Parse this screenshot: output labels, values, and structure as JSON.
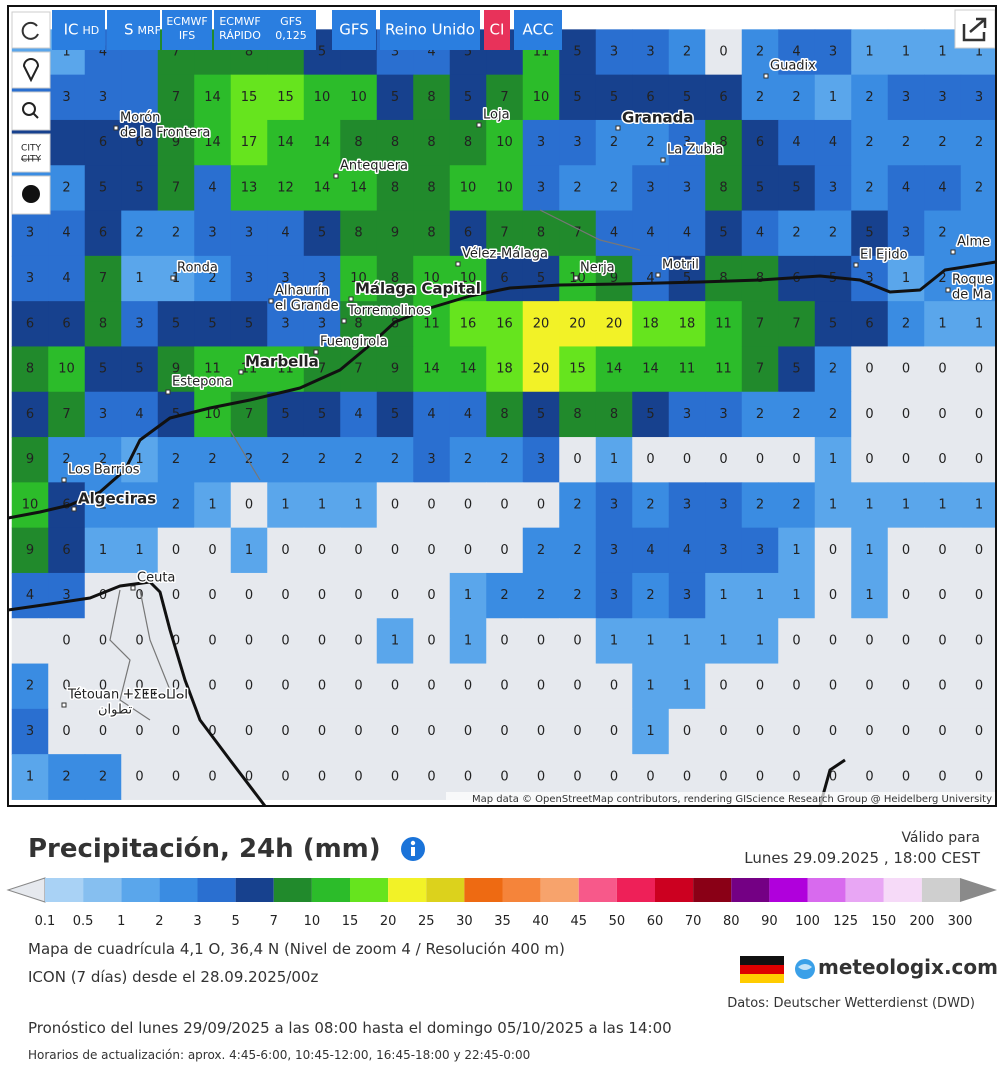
{
  "toolbar": {
    "buttons": [
      {
        "label": "IC",
        "sub": "HD"
      },
      {
        "label": "S",
        "sub": "MRF"
      },
      {
        "label": "ECMWF",
        "sub": "IFS"
      },
      {
        "label": "ECMWF",
        "sub": "RÁPIDO"
      },
      {
        "label": "GFS",
        "sub": "0,125"
      },
      {
        "label": "GFS"
      },
      {
        "label": "Reino Unido"
      },
      {
        "label": "CI"
      },
      {
        "label": "ACC"
      }
    ],
    "city_icon": "CITY"
  },
  "map": {
    "grid": [
      [
        null,
        1,
        4,
        null,
        7,
        null,
        8,
        null,
        5,
        null,
        3,
        4,
        5,
        null,
        11,
        5,
        3,
        3,
        2,
        0,
        2,
        4,
        3,
        1,
        1,
        1,
        1
      ],
      [
        null,
        3,
        3,
        null,
        7,
        14,
        15,
        15,
        10,
        10,
        5,
        8,
        5,
        7,
        10,
        5,
        5,
        6,
        5,
        6,
        2,
        2,
        1,
        2,
        3,
        3,
        3
      ],
      [
        null,
        null,
        6,
        6,
        9,
        14,
        17,
        14,
        14,
        8,
        8,
        8,
        8,
        10,
        3,
        3,
        2,
        2,
        3,
        8,
        6,
        4,
        4,
        2,
        2,
        2,
        2
      ],
      [
        null,
        2,
        5,
        5,
        7,
        4,
        13,
        12,
        14,
        14,
        8,
        8,
        10,
        10,
        3,
        2,
        2,
        3,
        3,
        8,
        5,
        5,
        3,
        2,
        4,
        4,
        2
      ],
      [
        3,
        4,
        6,
        2,
        2,
        3,
        3,
        4,
        5,
        8,
        9,
        8,
        6,
        7,
        8,
        7,
        4,
        4,
        4,
        5,
        4,
        2,
        2,
        5,
        3,
        2,
        null
      ],
      [
        3,
        4,
        7,
        1,
        1,
        2,
        3,
        3,
        3,
        10,
        8,
        10,
        10,
        6,
        5,
        10,
        9,
        4,
        5,
        8,
        8,
        6,
        5,
        3,
        1,
        2,
        null
      ],
      [
        6,
        6,
        8,
        3,
        5,
        5,
        5,
        3,
        3,
        8,
        8,
        11,
        16,
        16,
        20,
        20,
        20,
        18,
        18,
        11,
        7,
        7,
        5,
        6,
        2,
        1,
        1
      ],
      [
        8,
        10,
        5,
        5,
        9,
        11,
        11,
        11,
        7,
        7,
        9,
        14,
        14,
        18,
        20,
        15,
        14,
        14,
        11,
        11,
        7,
        5,
        2,
        0,
        0,
        0,
        0
      ],
      [
        6,
        7,
        3,
        4,
        5,
        10,
        7,
        5,
        5,
        4,
        5,
        4,
        4,
        8,
        5,
        8,
        8,
        5,
        3,
        3,
        2,
        2,
        2,
        0,
        0,
        0,
        0
      ],
      [
        9,
        2,
        2,
        1,
        2,
        2,
        2,
        2,
        2,
        2,
        2,
        3,
        2,
        2,
        3,
        0,
        1,
        0,
        0,
        0,
        0,
        0,
        1,
        0,
        0,
        0,
        0
      ],
      [
        10,
        6,
        2,
        null,
        2,
        1,
        0,
        1,
        1,
        1,
        0,
        0,
        0,
        0,
        0,
        2,
        3,
        2,
        3,
        3,
        2,
        2,
        1,
        1,
        1,
        1,
        1
      ],
      [
        9,
        6,
        1,
        1,
        0,
        0,
        1,
        0,
        0,
        0,
        0,
        0,
        0,
        0,
        2,
        2,
        3,
        4,
        4,
        3,
        3,
        1,
        0,
        1,
        0,
        0,
        0
      ],
      [
        4,
        3,
        0,
        0,
        0,
        0,
        0,
        0,
        0,
        0,
        0,
        0,
        1,
        2,
        2,
        2,
        3,
        2,
        3,
        1,
        1,
        1,
        0,
        1,
        0,
        0,
        0
      ],
      [
        null,
        0,
        0,
        0,
        0,
        0,
        0,
        0,
        0,
        0,
        1,
        0,
        1,
        0,
        0,
        0,
        1,
        1,
        1,
        1,
        1,
        0,
        0,
        0,
        0,
        0,
        0
      ],
      [
        2,
        0,
        0,
        0,
        0,
        0,
        0,
        0,
        0,
        0,
        0,
        0,
        0,
        0,
        0,
        0,
        0,
        1,
        1,
        0,
        0,
        0,
        0,
        0,
        0,
        0,
        0
      ],
      [
        3,
        0,
        0,
        0,
        0,
        0,
        0,
        0,
        0,
        0,
        0,
        0,
        0,
        0,
        0,
        0,
        0,
        1,
        0,
        0,
        0,
        0,
        0,
        0,
        0,
        0,
        0
      ],
      [
        1,
        2,
        2,
        0,
        0,
        0,
        0,
        0,
        0,
        0,
        0,
        0,
        0,
        0,
        0,
        0,
        0,
        0,
        0,
        0,
        0,
        0,
        0,
        0,
        0,
        0,
        0
      ]
    ],
    "places": [
      {
        "lines": [
          "Morón",
          "de la Frontera"
        ]
      },
      {
        "lines": [
          "Loja"
        ]
      },
      {
        "lines": [
          "Granada"
        ]
      },
      {
        "lines": [
          "Guadix"
        ]
      },
      {
        "lines": [
          "La Zubia"
        ]
      },
      {
        "lines": [
          "Antequera"
        ]
      },
      {
        "lines": [
          "Vélez-Málaga"
        ]
      },
      {
        "lines": [
          "Nerja"
        ]
      },
      {
        "lines": [
          "Motril"
        ]
      },
      {
        "lines": [
          "El Ejido"
        ]
      },
      {
        "lines": [
          "Alme"
        ]
      },
      {
        "lines": [
          "Roque",
          "de Ma"
        ]
      },
      {
        "lines": [
          "Ronda"
        ]
      },
      {
        "lines": [
          "Alhaurín",
          "el Grande"
        ]
      },
      {
        "lines": [
          "Málaga Capital"
        ]
      },
      {
        "lines": [
          "Torremolinos"
        ]
      },
      {
        "lines": [
          "Fuengirola"
        ]
      },
      {
        "lines": [
          "Marbella"
        ]
      },
      {
        "lines": [
          "Estepona"
        ]
      },
      {
        "lines": [
          "Los Barrios"
        ]
      },
      {
        "lines": [
          "Algeciras"
        ]
      },
      {
        "lines": [
          "Ceuta"
        ]
      },
      {
        "lines": [
          "Tétouan ⵜⵉⵟⵟⴰⵡⴰⵏ",
          "تطوان"
        ]
      }
    ],
    "attribution": "Map data © OpenStreetMap contributors, rendering GIScience Research Group @ Heidelberg University"
  },
  "legend": {
    "title": "Precipitación, 24h (mm)",
    "labels": [
      0.1,
      0.5,
      1,
      2,
      3,
      5,
      7,
      10,
      15,
      20,
      25,
      30,
      35,
      40,
      45,
      50,
      60,
      70,
      80,
      90,
      100,
      125,
      150,
      200,
      300
    ],
    "colors": [
      "#a9d2f5",
      "#86bff0",
      "#5aa6eb",
      "#3a8ce2",
      "#2a6fd0",
      "#17418e",
      "#218a2c",
      "#2cbc2a",
      "#66e41e",
      "#f2f227",
      "#dcd21c",
      "#ee6a12",
      "#f5843a",
      "#f7a36c",
      "#f7598a",
      "#ee2058",
      "#cc0020",
      "#8a0016",
      "#740084",
      "#b000dc",
      "#d86aee",
      "#e8a6f4",
      "#f6daf8",
      "#cfcfcf"
    ],
    "below_color": "#e6e9ee",
    "above_color": "#8a8a8a"
  },
  "valid": {
    "label": "Válido para",
    "time": "Lunes 29.09.2025 , 18:00 CEST"
  },
  "info": {
    "grid": "Mapa de cuadrícula 4,1 O, 36,4 N (Nivel de zoom 4 / Resolución 400 m)",
    "model": "ICON (7 días) desde el 28.09.2025/00z",
    "brand": "meteologix.com",
    "source": "Datos: Deutscher Wetterdienst (DWD)",
    "forecast": "Pronóstico del lunes 29/09/2025 a las 08:00 hasta el domingo 05/10/2025 a las 14:00",
    "updates": "Horarios de actualización: aprox. 4:45-6:00, 10:45-12:00, 16:45-18:00 y 22:45-0:00"
  }
}
